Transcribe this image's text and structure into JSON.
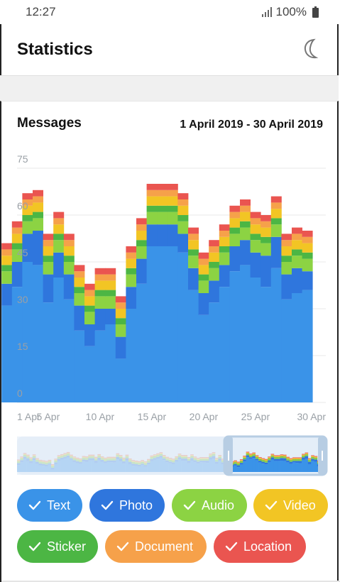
{
  "status_bar": {
    "time": "12:27",
    "battery": "100%"
  },
  "app_bar": {
    "title": "Statistics",
    "night_mode_icon": "moon-icon"
  },
  "card": {
    "title": "Messages",
    "date_range": "1 April 2019 - 30 April 2019"
  },
  "chart_data": {
    "type": "bar",
    "stacked": true,
    "title": "Messages",
    "x": [
      "1",
      "2",
      "3",
      "4",
      "5",
      "6",
      "7",
      "8",
      "9",
      "10",
      "11",
      "12",
      "13",
      "14",
      "15",
      "16",
      "17",
      "18",
      "19",
      "20",
      "21",
      "22",
      "23",
      "24",
      "25",
      "26",
      "27",
      "28",
      "29",
      "30"
    ],
    "x_tick_labels": [
      "1 Apr",
      "5 Apr",
      "10 Apr",
      "15 Apr",
      "20 Apr",
      "25 Apr",
      "30 Apr"
    ],
    "y_tick_labels": [
      "0",
      "15",
      "30",
      "45",
      "60",
      "75"
    ],
    "ylim": [
      0,
      80
    ],
    "grid": true,
    "series": [
      {
        "name": "Text",
        "color": "#3a93e8",
        "values": [
          31,
          37,
          45,
          44,
          32,
          40,
          33,
          23,
          18,
          23,
          25,
          14,
          30,
          38,
          50,
          50,
          50,
          48,
          36,
          28,
          32,
          37,
          42,
          44,
          40,
          37,
          43,
          33,
          35,
          36
        ]
      },
      {
        "name": "Photo",
        "color": "#2f76dd",
        "values": [
          7,
          8,
          9,
          11,
          9,
          8,
          8,
          8,
          7,
          7,
          5,
          7,
          7,
          8,
          7,
          7,
          7,
          6,
          7,
          7,
          7,
          7,
          8,
          8,
          8,
          10,
          10,
          8,
          8,
          6
        ]
      },
      {
        "name": "Audio",
        "color": "#8cd343",
        "values": [
          4,
          4,
          4,
          4,
          4,
          4,
          4,
          4,
          4,
          4,
          4,
          4,
          4,
          4,
          4,
          4,
          4,
          4,
          4,
          4,
          4,
          4,
          4,
          4,
          4,
          4,
          4,
          4,
          4,
          4
        ]
      },
      {
        "name": "Sticker",
        "color": "#4cb644",
        "values": [
          2,
          2,
          2,
          2,
          2,
          2,
          2,
          2,
          2,
          2,
          2,
          2,
          2,
          2,
          2,
          2,
          2,
          2,
          2,
          2,
          2,
          2,
          2,
          2,
          2,
          2,
          2,
          2,
          2,
          2
        ]
      },
      {
        "name": "Video",
        "color": "#f2c524",
        "values": [
          3,
          3,
          3,
          3,
          3,
          3,
          3,
          3,
          3,
          3,
          3,
          3,
          3,
          3,
          3,
          3,
          3,
          3,
          3,
          3,
          3,
          3,
          3,
          3,
          3,
          3,
          3,
          3,
          3,
          3
        ]
      },
      {
        "name": "Document",
        "color": "#f6a14a",
        "values": [
          2,
          2,
          2,
          2,
          2,
          2,
          2,
          2,
          2,
          2,
          2,
          2,
          2,
          2,
          2,
          2,
          2,
          2,
          2,
          2,
          2,
          2,
          2,
          2,
          2,
          2,
          2,
          2,
          2,
          2
        ]
      },
      {
        "name": "Location",
        "color": "#ea5550",
        "values": [
          2,
          2,
          2,
          2,
          2,
          2,
          2,
          2,
          2,
          2,
          2,
          2,
          2,
          2,
          2,
          2,
          2,
          2,
          2,
          2,
          2,
          2,
          2,
          2,
          2,
          2,
          2,
          2,
          2,
          2
        ]
      }
    ]
  },
  "filters": [
    {
      "label": "Text",
      "color": "#3a93e8",
      "checked": true
    },
    {
      "label": "Photo",
      "color": "#2f76dd",
      "checked": true
    },
    {
      "label": "Audio",
      "color": "#8cd343",
      "checked": true
    },
    {
      "label": "Video",
      "color": "#f2c524",
      "checked": true
    },
    {
      "label": "Sticker",
      "color": "#4cb644",
      "checked": true
    },
    {
      "label": "Document",
      "color": "#f6a14a",
      "checked": true
    },
    {
      "label": "Location",
      "color": "#ea5550",
      "checked": true
    }
  ]
}
